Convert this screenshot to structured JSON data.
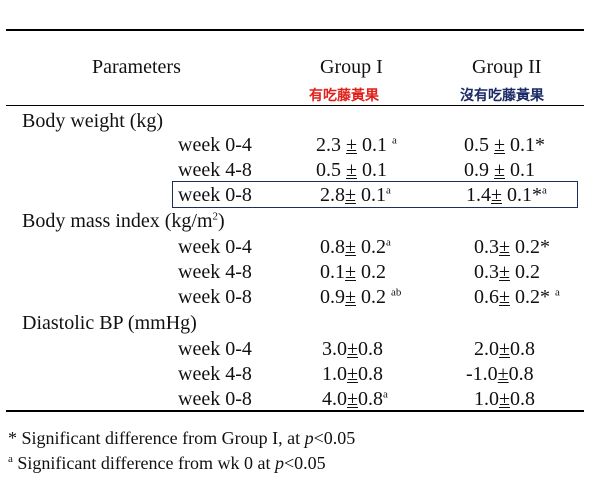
{
  "header": {
    "col_parameters": "Parameters",
    "col_group1": "Group I",
    "col_group2": "Group II",
    "group1_note": "有吃藤黃果",
    "group2_note": "沒有吃藤黃果"
  },
  "colors": {
    "group1_note": "#e0201b",
    "group2_note": "#1a2a66",
    "highlight_border": "#1c2e5a"
  },
  "sections": [
    {
      "title": "Body weight (kg)",
      "rows": [
        {
          "label": "week 0-4",
          "g1": {
            "v": "2.3",
            "pm": "±",
            "e": "0.1",
            "sup": "a"
          },
          "g2": {
            "v": "0.5",
            "pm": "±",
            "e": "0.1*",
            "sup": ""
          }
        },
        {
          "label": "week 4-8",
          "g1": {
            "v": "0.5",
            "pm": "±",
            "e": "0.1",
            "sup": ""
          },
          "g2": {
            "v": "0.9",
            "pm": "±",
            "e": "0.1",
            "sup": ""
          }
        },
        {
          "label": "week 0-8",
          "g1": {
            "v": "2.8",
            "pm": "±",
            "e": "0.1",
            "sup": "a"
          },
          "g2": {
            "v": "1.4",
            "pm": "±",
            "e": "0.1*",
            "sup": "a"
          }
        }
      ]
    },
    {
      "title": "Body mass index (kg/m",
      "title_sup": "2",
      "title_end": ")",
      "rows": [
        {
          "label": "week 0-4",
          "g1": {
            "v": "0.8",
            "pm": "±",
            "e": "0.2",
            "sup": "a"
          },
          "g2": {
            "v": "0.3",
            "pm": "±",
            "e": "0.2*",
            "sup": ""
          }
        },
        {
          "label": "week 4-8",
          "g1": {
            "v": "0.1",
            "pm": "±",
            "e": "0.2",
            "sup": ""
          },
          "g2": {
            "v": "0.3",
            "pm": "±",
            "e": "0.2",
            "sup": ""
          }
        },
        {
          "label": "week 0-8",
          "g1": {
            "v": "0.9",
            "pm": "±",
            "e": "0.2",
            "sup": "ab"
          },
          "g2": {
            "v": "0.6",
            "pm": "±",
            "e": "0.2*",
            "sup": "a"
          }
        }
      ]
    },
    {
      "title": "Diastolic BP (mmHg)",
      "rows": [
        {
          "label": "week 0-4",
          "g1": {
            "v": "3.0",
            "pm": "±",
            "e": "0.8",
            "sup": ""
          },
          "g2": {
            "v": "2.0",
            "pm": "±",
            "e": "0.8",
            "sup": ""
          }
        },
        {
          "label": "week 4-8",
          "g1": {
            "v": "1.0",
            "pm": "±",
            "e": "0.8",
            "sup": ""
          },
          "g2": {
            "v": "-1.0",
            "pm": "±",
            "e": "0.8",
            "sup": ""
          }
        },
        {
          "label": "week 0-8",
          "g1": {
            "v": "4.0",
            "pm": "±",
            "e": "0.8",
            "sup": "a"
          },
          "g2": {
            "v": "1.0",
            "pm": "±",
            "e": "0.8",
            "sup": ""
          }
        }
      ]
    }
  ],
  "footnotes": {
    "note1_mark": "*",
    "note1_text": " Significant difference from Group I, at ",
    "note1_p": "p",
    "note1_end": "<0.05",
    "note2_mark": "a",
    "note2_text": " Significant difference from wk 0 at ",
    "note2_p": "p",
    "note2_end": "<0.05"
  }
}
